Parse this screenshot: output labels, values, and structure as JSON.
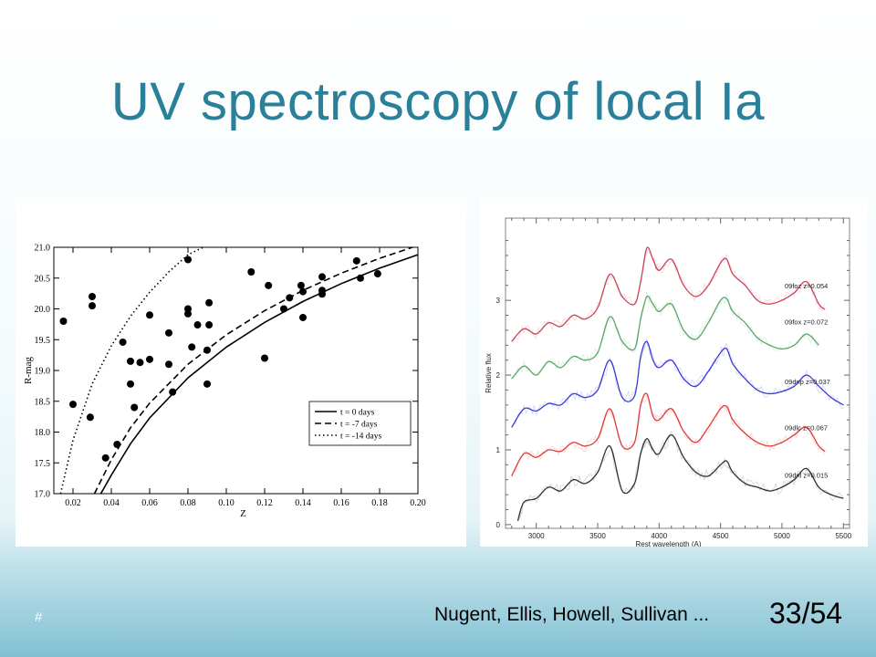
{
  "slide": {
    "title": "UV spectroscopy of local Ia",
    "footer_mark": "#",
    "citation": "Nugent, Ellis, Howell, Sullivan ...",
    "page_number": "33/54"
  },
  "chart_data": [
    {
      "type": "scatter",
      "title": "",
      "xlabel": "Z",
      "ylabel": "R-mag",
      "xlim": [
        0.01,
        0.2
      ],
      "ylim": [
        17.0,
        21.0
      ],
      "xticks": [
        "0.02",
        "0.04",
        "0.06",
        "0.08",
        "0.10",
        "0.12",
        "0.14",
        "0.16",
        "0.18",
        "0.20"
      ],
      "yticks": [
        "17.0",
        "17.5",
        "18.0",
        "18.5",
        "19.0",
        "19.5",
        "20.0",
        "20.5",
        "21.0"
      ],
      "legend_position": "lower-right",
      "points": [
        {
          "x": 0.015,
          "y": 19.8
        },
        {
          "x": 0.02,
          "y": 18.45
        },
        {
          "x": 0.029,
          "y": 18.24
        },
        {
          "x": 0.03,
          "y": 20.2
        },
        {
          "x": 0.03,
          "y": 20.05
        },
        {
          "x": 0.037,
          "y": 17.58
        },
        {
          "x": 0.043,
          "y": 17.8
        },
        {
          "x": 0.046,
          "y": 19.46
        },
        {
          "x": 0.05,
          "y": 19.15
        },
        {
          "x": 0.05,
          "y": 18.78
        },
        {
          "x": 0.052,
          "y": 18.4
        },
        {
          "x": 0.055,
          "y": 19.13
        },
        {
          "x": 0.06,
          "y": 19.9
        },
        {
          "x": 0.06,
          "y": 19.18
        },
        {
          "x": 0.07,
          "y": 19.61
        },
        {
          "x": 0.07,
          "y": 19.1
        },
        {
          "x": 0.072,
          "y": 18.65
        },
        {
          "x": 0.08,
          "y": 20.8
        },
        {
          "x": 0.08,
          "y": 20.0
        },
        {
          "x": 0.08,
          "y": 19.92
        },
        {
          "x": 0.082,
          "y": 19.38
        },
        {
          "x": 0.085,
          "y": 19.74
        },
        {
          "x": 0.09,
          "y": 19.33
        },
        {
          "x": 0.09,
          "y": 18.78
        },
        {
          "x": 0.091,
          "y": 20.1
        },
        {
          "x": 0.091,
          "y": 19.74
        },
        {
          "x": 0.113,
          "y": 20.6
        },
        {
          "x": 0.12,
          "y": 19.2
        },
        {
          "x": 0.122,
          "y": 20.38
        },
        {
          "x": 0.13,
          "y": 20.0
        },
        {
          "x": 0.133,
          "y": 20.18
        },
        {
          "x": 0.139,
          "y": 20.38
        },
        {
          "x": 0.14,
          "y": 20.28
        },
        {
          "x": 0.14,
          "y": 19.86
        },
        {
          "x": 0.15,
          "y": 20.52
        },
        {
          "x": 0.15,
          "y": 20.3
        },
        {
          "x": 0.15,
          "y": 20.24
        },
        {
          "x": 0.168,
          "y": 20.78
        },
        {
          "x": 0.17,
          "y": 20.5
        },
        {
          "x": 0.179,
          "y": 20.57
        }
      ],
      "series": [
        {
          "name": "t = 0 days",
          "style": "solid",
          "x": [
            0.0345,
            0.04,
            0.05,
            0.06,
            0.08,
            0.1,
            0.12,
            0.14,
            0.16,
            0.18,
            0.2
          ],
          "y": [
            17.0,
            17.3,
            17.81,
            18.23,
            18.88,
            19.38,
            19.78,
            20.12,
            20.41,
            20.66,
            20.88
          ]
        },
        {
          "name": "t = -7 days",
          "style": "dashed",
          "x": [
            0.0312,
            0.04,
            0.05,
            0.06,
            0.08,
            0.1,
            0.12,
            0.14,
            0.16,
            0.18,
            0.2
          ],
          "y": [
            17.0,
            17.55,
            18.07,
            18.47,
            19.1,
            19.58,
            19.97,
            20.3,
            20.58,
            20.82,
            21.03
          ]
        },
        {
          "name": "t = -14 days",
          "style": "dotted",
          "x": [
            0.0135,
            0.02,
            0.03,
            0.04,
            0.05,
            0.06,
            0.07,
            0.08,
            0.088
          ],
          "y": [
            17.0,
            17.87,
            18.78,
            19.4,
            19.88,
            20.27,
            20.6,
            20.88,
            21.0
          ]
        }
      ]
    },
    {
      "type": "line",
      "title": "",
      "xlabel": "Rest wavelength (A)",
      "ylabel": "Relative flux",
      "xlim": [
        2750,
        5550
      ],
      "ylim": [
        -0.05,
        4.1
      ],
      "xticks": [
        "3000",
        "3500",
        "4000",
        "4500",
        "5000",
        "5500"
      ],
      "yticks": [
        "0",
        "1",
        "2",
        "3"
      ],
      "series": [
        {
          "name": "09foz z=0.054",
          "color": "#c8465a",
          "x": [
            2800,
            2900,
            3000,
            3100,
            3200,
            3300,
            3400,
            3500,
            3600,
            3700,
            3800,
            3850,
            3900,
            3950,
            4000,
            4100,
            4200,
            4300,
            4400,
            4500,
            4550,
            4600,
            4700,
            4800,
            4900,
            5000,
            5100,
            5200,
            5300,
            5350
          ],
          "y": [
            2.45,
            2.62,
            2.55,
            2.7,
            2.65,
            2.8,
            2.75,
            2.9,
            3.35,
            3.05,
            2.95,
            3.25,
            3.7,
            3.55,
            3.4,
            3.55,
            3.2,
            3.05,
            3.2,
            3.5,
            3.55,
            3.35,
            3.2,
            3.0,
            2.95,
            3.0,
            3.1,
            3.25,
            2.95,
            2.88
          ]
        },
        {
          "name": "09fox z=0.072",
          "color": "#5aa86a",
          "x": [
            2800,
            2900,
            3000,
            3100,
            3200,
            3300,
            3400,
            3500,
            3600,
            3700,
            3800,
            3850,
            3900,
            3950,
            4000,
            4100,
            4200,
            4300,
            4400,
            4500,
            4550,
            4600,
            4700,
            4800,
            4900,
            5000,
            5100,
            5200,
            5300
          ],
          "y": [
            1.95,
            2.12,
            2.0,
            2.18,
            2.1,
            2.25,
            2.2,
            2.3,
            2.78,
            2.45,
            2.35,
            2.75,
            3.05,
            2.95,
            2.85,
            2.95,
            2.6,
            2.48,
            2.7,
            3.0,
            3.02,
            2.85,
            2.7,
            2.5,
            2.4,
            2.35,
            2.4,
            2.55,
            2.4
          ]
        },
        {
          "name": "09dnp z=0.037",
          "color": "#3a3ad8",
          "x": [
            2800,
            2900,
            3000,
            3100,
            3200,
            3300,
            3400,
            3500,
            3600,
            3700,
            3800,
            3850,
            3900,
            3950,
            4000,
            4100,
            4200,
            4300,
            4400,
            4500,
            4550,
            4600,
            4700,
            4800,
            4900,
            5000,
            5100,
            5200,
            5300,
            5400,
            5500
          ],
          "y": [
            1.3,
            1.55,
            1.52,
            1.62,
            1.6,
            1.75,
            1.7,
            1.8,
            2.2,
            1.7,
            1.72,
            2.25,
            2.45,
            2.2,
            2.1,
            2.2,
            1.95,
            1.85,
            2.05,
            2.3,
            2.35,
            2.15,
            1.95,
            1.8,
            1.75,
            1.78,
            1.85,
            2.0,
            1.85,
            1.7,
            1.6
          ]
        },
        {
          "name": "09dlc z=0.067",
          "color": "#e03a3a",
          "x": [
            2800,
            2900,
            3000,
            3100,
            3200,
            3300,
            3400,
            3500,
            3600,
            3700,
            3800,
            3850,
            3900,
            3950,
            4000,
            4100,
            4200,
            4300,
            4400,
            4500,
            4550,
            4600,
            4700,
            4800,
            4900,
            5000,
            5100,
            5200,
            5300,
            5350
          ],
          "y": [
            0.65,
            0.95,
            0.9,
            1.0,
            0.98,
            1.1,
            1.05,
            1.15,
            1.55,
            1.05,
            1.1,
            1.6,
            1.75,
            1.45,
            1.4,
            1.55,
            1.25,
            1.1,
            1.3,
            1.55,
            1.58,
            1.4,
            1.22,
            1.1,
            1.05,
            1.1,
            1.2,
            1.3,
            1.05,
            0.98
          ]
        },
        {
          "name": "09dnl z=0.015",
          "color": "#333333",
          "x": [
            2850,
            2900,
            3000,
            3100,
            3200,
            3300,
            3400,
            3500,
            3600,
            3700,
            3800,
            3850,
            3900,
            3950,
            4000,
            4100,
            4200,
            4300,
            4400,
            4500,
            4550,
            4600,
            4700,
            4800,
            4900,
            5000,
            5100,
            5200,
            5300,
            5400,
            5500
          ],
          "y": [
            0.05,
            0.3,
            0.35,
            0.5,
            0.45,
            0.6,
            0.55,
            0.7,
            1.05,
            0.45,
            0.55,
            0.95,
            1.15,
            1.0,
            0.95,
            1.2,
            0.9,
            0.7,
            0.65,
            0.8,
            0.85,
            0.7,
            0.55,
            0.5,
            0.45,
            0.5,
            0.6,
            0.75,
            0.5,
            0.4,
            0.35
          ]
        }
      ]
    }
  ]
}
